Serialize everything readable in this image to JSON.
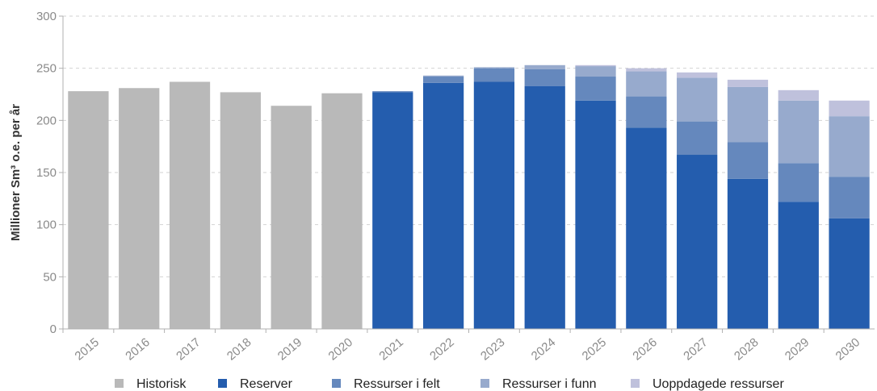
{
  "chart_data": {
    "type": "bar",
    "stacked": true,
    "ylabel": "Millioner Sm³ o.e. per år",
    "xlabel": "",
    "ylim": [
      0,
      300
    ],
    "yticks": [
      0,
      50,
      100,
      150,
      200,
      250,
      300
    ],
    "grid": "horizontal dashed",
    "legend_position": "bottom",
    "categories": [
      "2015",
      "2016",
      "2017",
      "2018",
      "2019",
      "2020",
      "2021",
      "2022",
      "2023",
      "2024",
      "2025",
      "2026",
      "2027",
      "2028",
      "2029",
      "2030"
    ],
    "series": [
      {
        "name": "Historisk",
        "color": "#b9b9b9",
        "values": [
          228,
          231,
          237,
          227,
          214,
          226,
          0,
          0,
          0,
          0,
          0,
          0,
          0,
          0,
          0,
          0
        ]
      },
      {
        "name": "Reserver",
        "color": "#245dae",
        "values": [
          0,
          0,
          0,
          0,
          0,
          0,
          227,
          236,
          237,
          233,
          219,
          193,
          167,
          144,
          122,
          106
        ]
      },
      {
        "name": "Ressurser i felt",
        "color": "#6588bd",
        "values": [
          0,
          0,
          0,
          0,
          0,
          0,
          1,
          6,
          13,
          16,
          23,
          30,
          32,
          35,
          37,
          40
        ]
      },
      {
        "name": "Ressurser i funn",
        "color": "#97aacd",
        "values": [
          0,
          0,
          0,
          0,
          0,
          0,
          0,
          1,
          1,
          4,
          10,
          24,
          42,
          53,
          60,
          58
        ]
      },
      {
        "name": "Uoppdagede ressurser",
        "color": "#bfc1dc",
        "values": [
          0,
          0,
          0,
          0,
          0,
          0,
          0,
          0,
          0,
          0,
          1,
          3,
          5,
          7,
          10,
          15
        ]
      }
    ]
  }
}
